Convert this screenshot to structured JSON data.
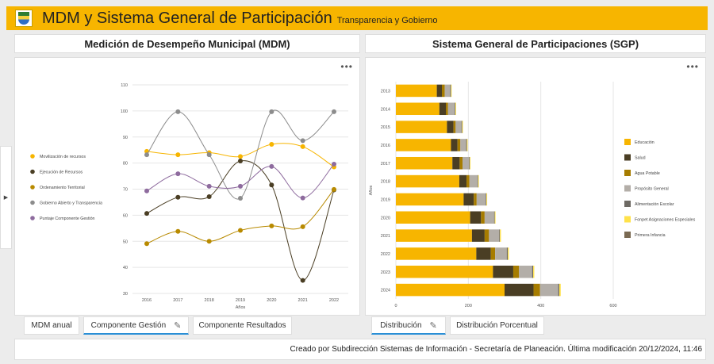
{
  "header": {
    "title": "MDM y Sistema General de Participación",
    "subtitle": "Transparencia y Gobierno",
    "brand_color": "#f7b500"
  },
  "left_panel": {
    "title": "Medición de Desempeño Municipal (MDM)",
    "menu_icon": "more-horizontal-icon"
  },
  "right_panel": {
    "title": "Sistema General de Participaciones (SGP)",
    "menu_icon": "more-horizontal-icon"
  },
  "sidebar_toggle_icon": "caret-right-icon",
  "chart_data": [
    {
      "type": "line",
      "title": "",
      "xlabel": "Años",
      "ylabel": "",
      "x": [
        2016,
        2017,
        2018,
        2019,
        2020,
        2021,
        2022
      ],
      "ylim": [
        30,
        110
      ],
      "yticks": [
        30,
        40,
        50,
        60,
        70,
        80,
        90,
        100,
        110
      ],
      "grid": true,
      "legend_position": "left",
      "series": [
        {
          "name": "Movilización de recursos",
          "color": "#f7b500",
          "values": [
            84.5,
            83.2,
            84.0,
            82.5,
            87.2,
            86.3,
            78.5
          ]
        },
        {
          "name": "Ejecución de Recursos",
          "color": "#4a3e24",
          "values": [
            60.7,
            66.9,
            67.1,
            80.8,
            71.6,
            35.0,
            69.7
          ]
        },
        {
          "name": "Ordenamiento Territorial",
          "color": "#b88a00",
          "values": [
            49.1,
            53.8,
            50.0,
            54.2,
            55.9,
            55.6,
            69.9
          ]
        },
        {
          "name": "Gobierno Abierto y Transparencia",
          "color": "#8c8c8c",
          "values": [
            83.2,
            99.7,
            83.2,
            66.5,
            99.7,
            88.6,
            99.7
          ]
        },
        {
          "name": "Puntaje Componente Gestión",
          "color": "#8e6b9e",
          "values": [
            69.3,
            75.9,
            71.1,
            71.1,
            78.7,
            66.6,
            79.6
          ]
        }
      ]
    },
    {
      "type": "bar",
      "orientation": "horizontal",
      "stacked": true,
      "title": "",
      "xlabel": "",
      "ylabel": "Años",
      "categories": [
        "2013",
        "2014",
        "2015",
        "2016",
        "2017",
        "2018",
        "2019",
        "2020",
        "2021",
        "2022",
        "2023",
        "2024"
      ],
      "xlim": [
        0,
        600
      ],
      "xticks": [
        0,
        200,
        400,
        600
      ],
      "grid": true,
      "legend_position": "right",
      "series": [
        {
          "name": "Educación",
          "color": "#f7b500",
          "values": [
            113,
            120,
            141,
            152,
            156,
            175,
            187,
            205,
            210,
            222,
            268,
            300
          ]
        },
        {
          "name": "Salud",
          "color": "#4a3e24",
          "values": [
            14,
            18,
            18,
            18,
            20,
            20,
            28,
            30,
            35,
            40,
            56,
            80
          ]
        },
        {
          "name": "Agua Potable",
          "color": "#a67c00",
          "values": [
            8,
            6,
            6,
            8,
            8,
            8,
            8,
            10,
            12,
            12,
            16,
            18
          ]
        },
        {
          "name": "Propósito General",
          "color": "#b3aea8",
          "values": [
            15,
            18,
            16,
            16,
            18,
            22,
            25,
            26,
            28,
            32,
            36,
            50
          ]
        },
        {
          "name": "Alimentación Escolar",
          "color": "#6e6a64",
          "values": [
            2,
            2,
            2,
            2,
            2,
            2,
            2,
            2,
            2,
            3,
            3,
            3
          ]
        },
        {
          "name": "Fonpet Asignaciones Especiales",
          "color": "#ffe24a",
          "values": [
            2,
            2,
            2,
            2,
            2,
            2,
            2,
            2,
            3,
            3,
            3,
            4
          ]
        },
        {
          "name": "Primera Infancia",
          "color": "#7a6a52",
          "values": [
            0,
            0,
            0,
            0,
            0,
            0,
            0,
            0,
            0,
            0,
            0,
            0
          ]
        }
      ]
    }
  ],
  "tabs_left": [
    {
      "label": "MDM anual",
      "active": false
    },
    {
      "label": "Componente Gestión",
      "active": true,
      "icon": "pencil-icon"
    },
    {
      "label": "Componente Resultados",
      "active": false
    }
  ],
  "tabs_right": [
    {
      "label": "Distribución",
      "active": true,
      "icon": "pencil-icon"
    },
    {
      "label": "Distribución Porcentual",
      "active": false
    }
  ],
  "footer": {
    "text": "Creado por Subdirección Sistemas de Información - Secretaría de Planeación. Última modificación 20/12/2024, 11:46"
  }
}
